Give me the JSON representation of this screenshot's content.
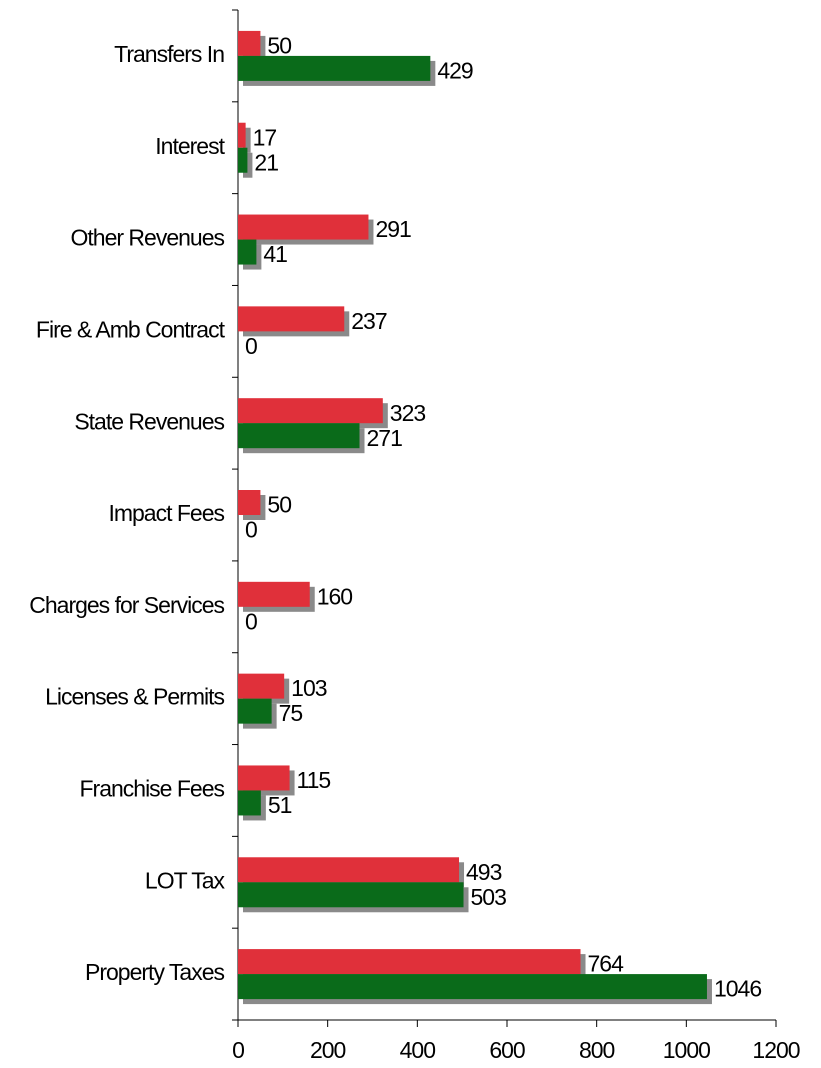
{
  "chart_data": {
    "type": "bar",
    "orientation": "horizontal",
    "categories": [
      "Property Taxes",
      "LOT Tax",
      "Franchise Fees",
      "Licenses & Permits",
      "Charges for Services",
      "Impact Fees",
      "State Revenues",
      "Fire & Amb Contract",
      "Other Revenues",
      "Interest",
      "Transfers In"
    ],
    "series": [
      {
        "color": "#e0303a",
        "values": [
          764,
          493,
          115,
          103,
          160,
          50,
          323,
          237,
          291,
          17,
          50
        ]
      },
      {
        "color": "#0a6b1a",
        "values": [
          1046,
          503,
          51,
          75,
          0,
          0,
          271,
          0,
          41,
          21,
          429
        ]
      }
    ],
    "xlim": [
      0,
      1200
    ],
    "xticks": [
      0,
      200,
      400,
      600,
      800,
      1000,
      1200
    ],
    "shadow": true,
    "grid": false
  }
}
